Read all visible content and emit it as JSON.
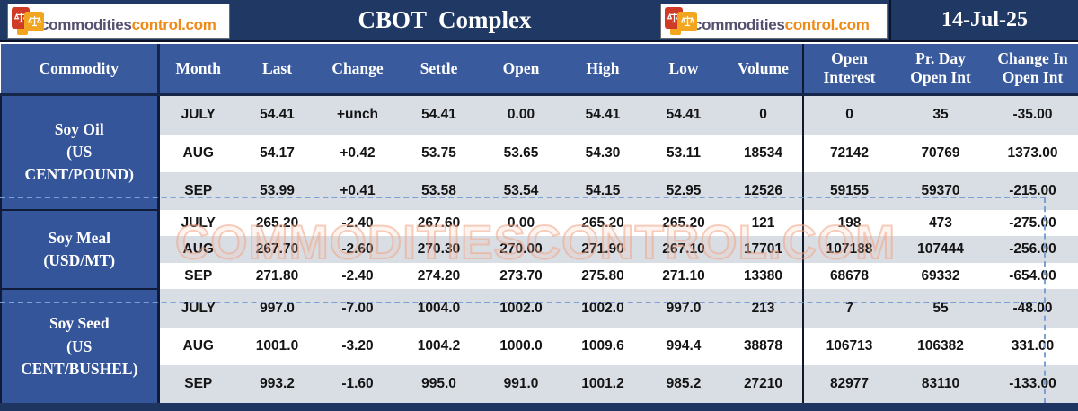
{
  "header": {
    "logo_text_primary": "commodities",
    "logo_text_secondary": "control.com",
    "title": "CBOT  Complex",
    "date": "14-Jul-25"
  },
  "watermark": "COMMODITIESCONTROL.COM",
  "colors": {
    "topbar_navy": "#1f3864",
    "header_blue": "#3a5a9e",
    "commodity_blue": "#35559b",
    "row_gray": "#d9dde4",
    "row_white": "#ffffff",
    "logo_orange": "#f08a17",
    "logo_purple": "#54506e",
    "dashed_line_blue": "#7ba0d6"
  },
  "table": {
    "columns": [
      "Commodity",
      "Month",
      "Last",
      "Change",
      "Settle",
      "Open",
      "High",
      "Low",
      "Volume",
      "Open Interest",
      "Pr. Day Open Int",
      "Change In Open Int"
    ],
    "groups": [
      {
        "commodity_lines": [
          "Soy Oil",
          "(US",
          "CENT/POUND)"
        ],
        "rows": [
          [
            "JULY",
            "54.41",
            "+unch",
            "54.41",
            "0.00",
            "54.41",
            "54.41",
            "0",
            "0",
            "35",
            "-35.00"
          ],
          [
            "AUG",
            "54.17",
            "+0.42",
            "53.75",
            "53.65",
            "54.30",
            "53.11",
            "18534",
            "72142",
            "70769",
            "1373.00"
          ],
          [
            "SEP",
            "53.99",
            "+0.41",
            "53.58",
            "53.54",
            "54.15",
            "52.95",
            "12526",
            "59155",
            "59370",
            "-215.00"
          ]
        ]
      },
      {
        "commodity_lines": [
          "Soy Meal",
          "(USD/MT)"
        ],
        "rows": [
          [
            "JULY",
            "265.20",
            "-2.40",
            "267.60",
            "0.00",
            "265.20",
            "265.20",
            "121",
            "198",
            "473",
            "-275.00"
          ],
          [
            "AUG",
            "267.70",
            "-2.60",
            "270.30",
            "270.00",
            "271.90",
            "267.10",
            "17701",
            "107188",
            "107444",
            "-256.00"
          ],
          [
            "SEP",
            "271.80",
            "-2.40",
            "274.20",
            "273.70",
            "275.80",
            "271.10",
            "13380",
            "68678",
            "69332",
            "-654.00"
          ]
        ]
      },
      {
        "commodity_lines": [
          "Soy Seed",
          "(US",
          "CENT/BUSHEL)"
        ],
        "rows": [
          [
            "JULY",
            "997.0",
            "-7.00",
            "1004.0",
            "1002.0",
            "1002.0",
            "997.0",
            "213",
            "7",
            "55",
            "-48.00"
          ],
          [
            "AUG",
            "1001.0",
            "-3.20",
            "1004.2",
            "1000.0",
            "1009.6",
            "994.4",
            "38878",
            "106713",
            "106382",
            "331.00"
          ],
          [
            "SEP",
            "993.2",
            "-1.60",
            "995.0",
            "991.0",
            "1001.2",
            "985.2",
            "27210",
            "82977",
            "83110",
            "-133.00"
          ]
        ]
      }
    ]
  },
  "chart_data": {
    "type": "table",
    "title": "CBOT Complex",
    "date": "14-Jul-25",
    "columns": [
      "Commodity",
      "Month",
      "Last",
      "Change",
      "Settle",
      "Open",
      "High",
      "Low",
      "Volume",
      "Open Interest",
      "Pr. Day Open Int",
      "Change In Open Int"
    ],
    "rows": [
      [
        "Soy Oil (US CENT/POUND)",
        "JULY",
        54.41,
        "+unch",
        54.41,
        0.0,
        54.41,
        54.41,
        0,
        0,
        35,
        -35.0
      ],
      [
        "Soy Oil (US CENT/POUND)",
        "AUG",
        54.17,
        "+0.42",
        53.75,
        53.65,
        54.3,
        53.11,
        18534,
        72142,
        70769,
        1373.0
      ],
      [
        "Soy Oil (US CENT/POUND)",
        "SEP",
        53.99,
        "+0.41",
        53.58,
        53.54,
        54.15,
        52.95,
        12526,
        59155,
        59370,
        -215.0
      ],
      [
        "Soy Meal (USD/MT)",
        "JULY",
        265.2,
        "-2.40",
        267.6,
        0.0,
        265.2,
        265.2,
        121,
        198,
        473,
        -275.0
      ],
      [
        "Soy Meal (USD/MT)",
        "AUG",
        267.7,
        "-2.60",
        270.3,
        270.0,
        271.9,
        267.1,
        17701,
        107188,
        107444,
        -256.0
      ],
      [
        "Soy Meal (USD/MT)",
        "SEP",
        271.8,
        "-2.40",
        274.2,
        273.7,
        275.8,
        271.1,
        13380,
        68678,
        69332,
        -654.0
      ],
      [
        "Soy Seed (US CENT/BUSHEL)",
        "JULY",
        997.0,
        "-7.00",
        1004.0,
        1002.0,
        1002.0,
        997.0,
        213,
        7,
        55,
        -48.0
      ],
      [
        "Soy Seed (US CENT/BUSHEL)",
        "AUG",
        1001.0,
        "-3.20",
        1004.2,
        1000.0,
        1009.6,
        994.4,
        38878,
        106713,
        106382,
        331.0
      ],
      [
        "Soy Seed (US CENT/BUSHEL)",
        "SEP",
        993.2,
        "-1.60",
        995.0,
        991.0,
        1001.2,
        985.2,
        27210,
        82977,
        83110,
        -133.0
      ]
    ]
  }
}
